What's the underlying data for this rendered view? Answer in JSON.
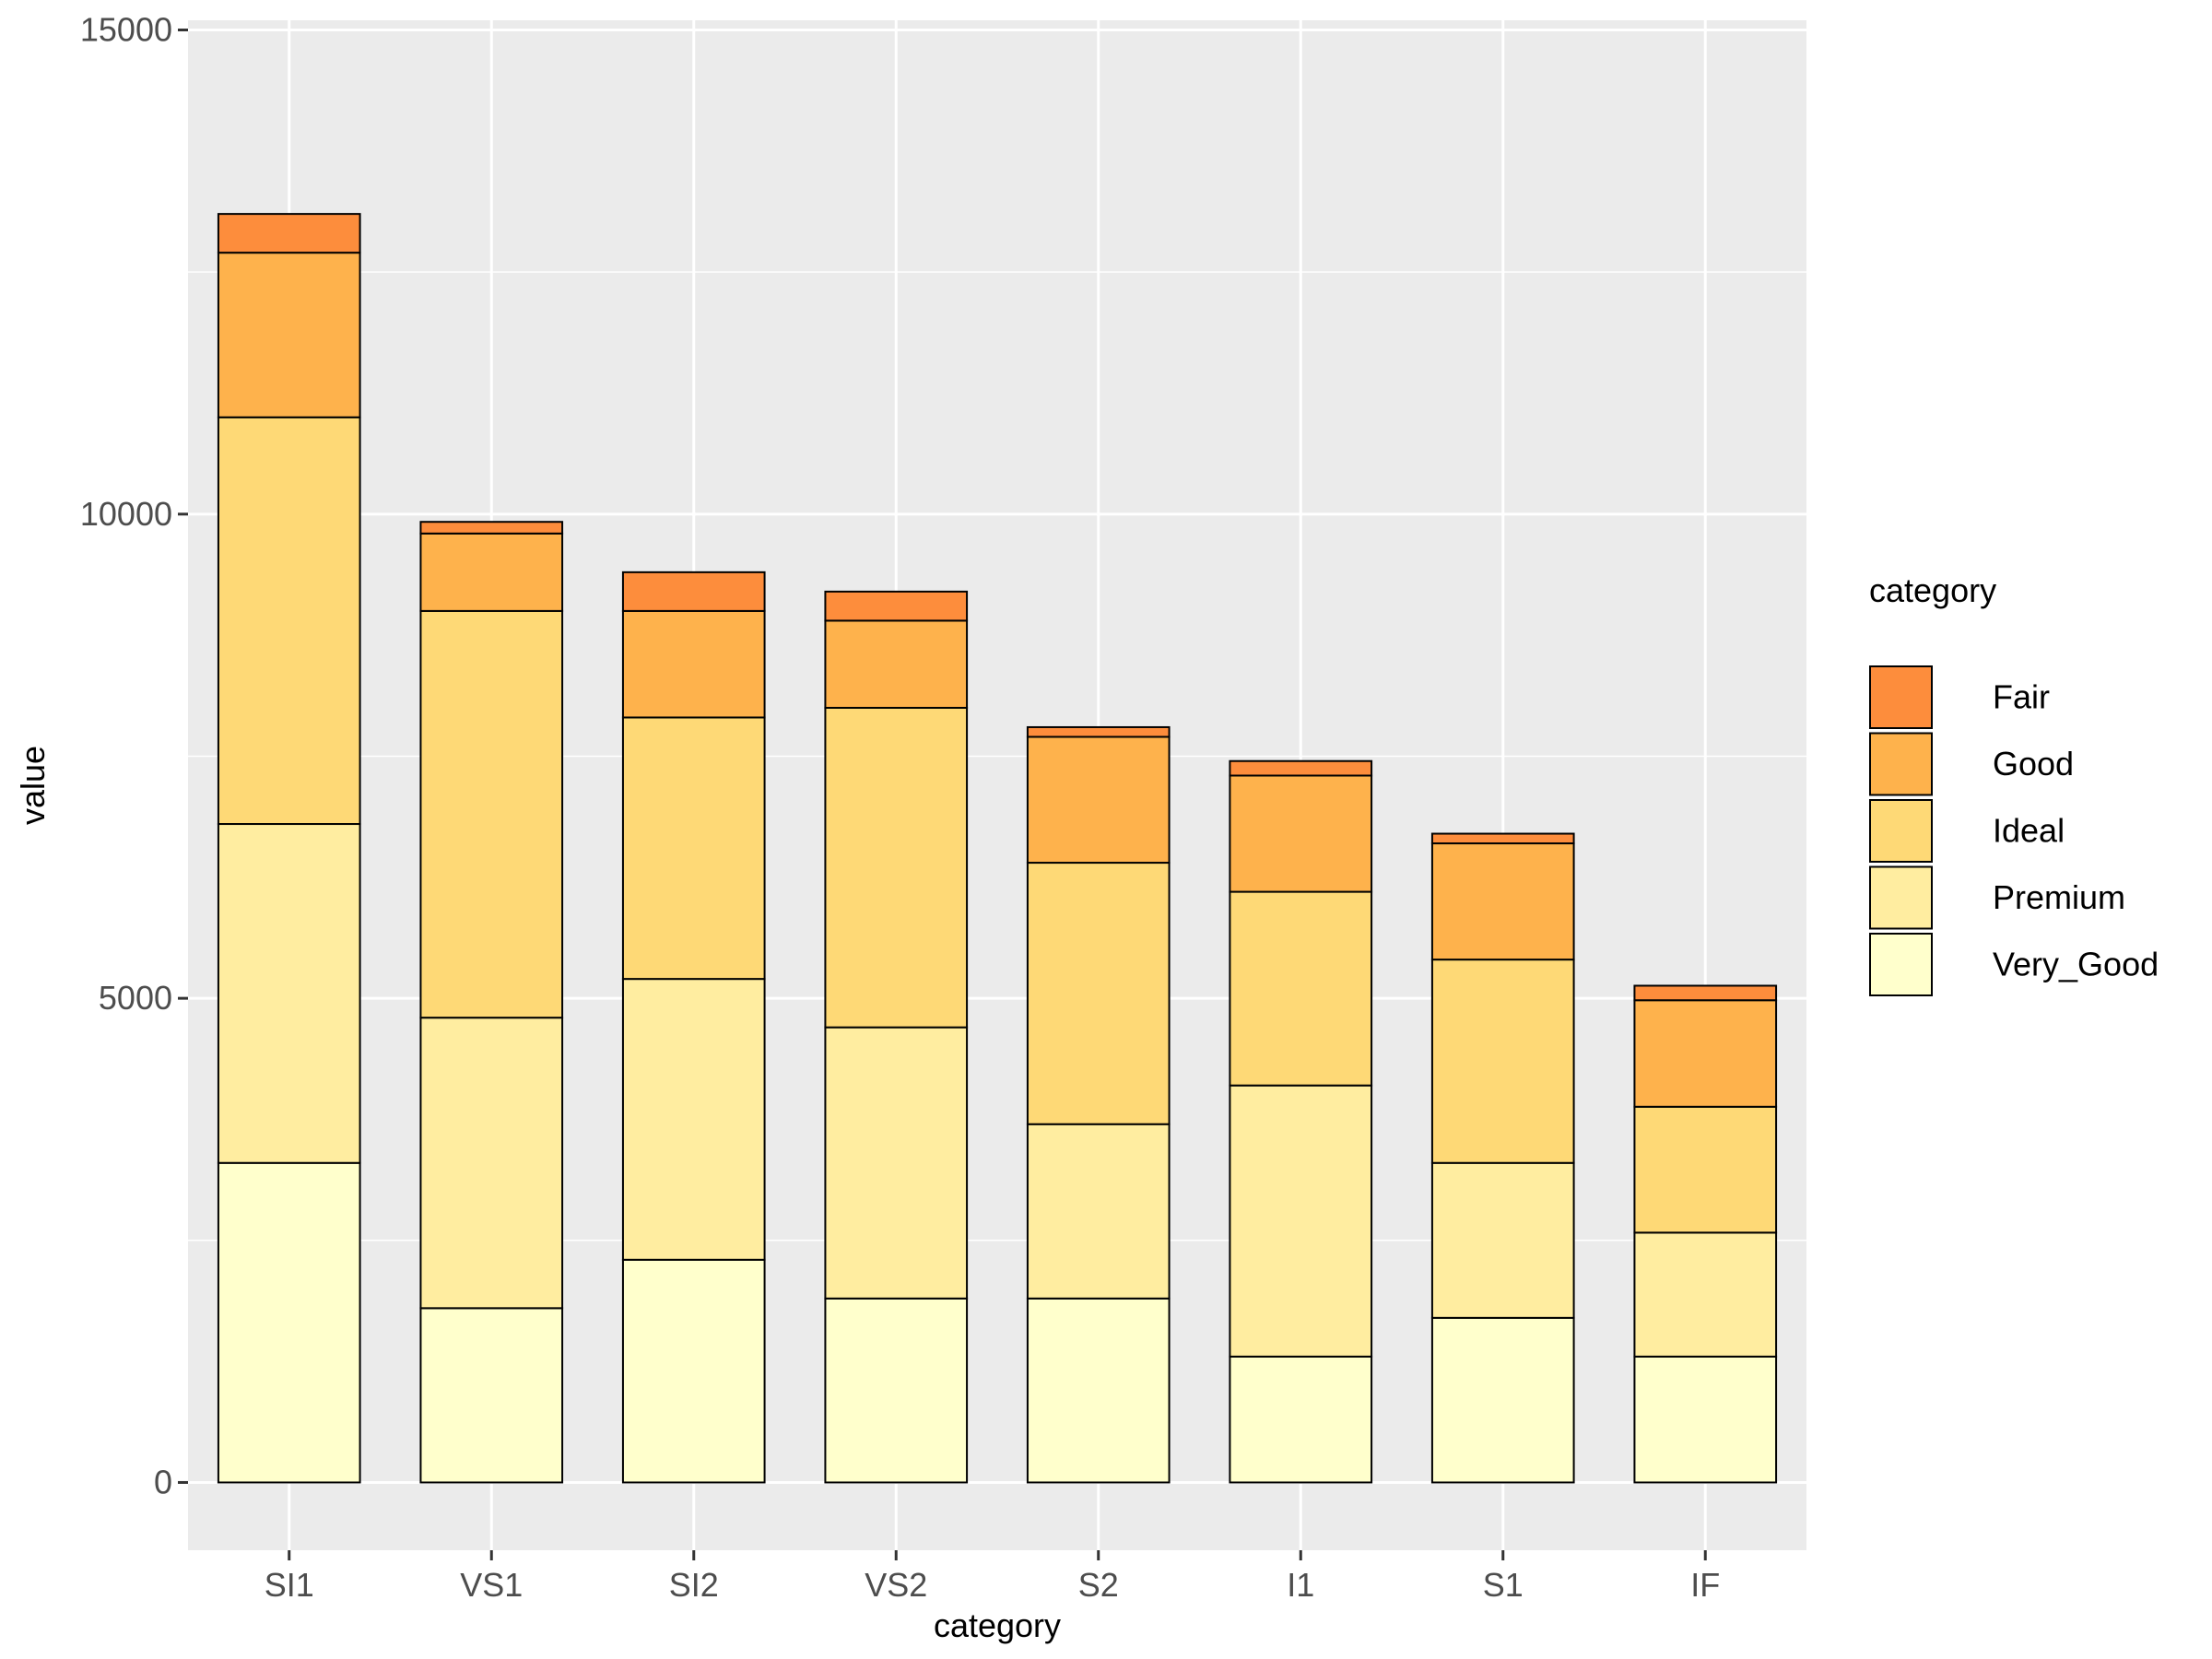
{
  "chart_data": {
    "type": "bar",
    "stacked": true,
    "categories": [
      "SI1",
      "VS1",
      "SI2",
      "VS2",
      "S2",
      "I1",
      "S1",
      "IF"
    ],
    "series": [
      {
        "name": "Very_Good",
        "color": "#FFFFCC",
        "values": [
          3300,
          1800,
          2300,
          1900,
          1900,
          1300,
          1700,
          1300
        ]
      },
      {
        "name": "Premium",
        "color": "#FFEDA0",
        "values": [
          3500,
          3000,
          2900,
          2800,
          1800,
          2800,
          1600,
          1280
        ]
      },
      {
        "name": "Ideal",
        "color": "#FED976",
        "values": [
          4200,
          4200,
          2700,
          3300,
          2700,
          2000,
          2100,
          1300
        ]
      },
      {
        "name": "Good",
        "color": "#FEB24C",
        "values": [
          1700,
          800,
          1100,
          900,
          1300,
          1200,
          1200,
          1100
        ]
      },
      {
        "name": "Fair",
        "color": "#FD8D3C",
        "values": [
          400,
          120,
          400,
          300,
          100,
          150,
          100,
          150
        ]
      }
    ],
    "xlabel": "category",
    "ylabel": "value",
    "yticks": [
      0,
      5000,
      10000,
      15000
    ],
    "ylim": [
      -700,
      15100
    ],
    "grid": true,
    "legend": {
      "title": "category",
      "position": "right",
      "order": [
        "Fair",
        "Good",
        "Ideal",
        "Premium",
        "Very_Good"
      ]
    },
    "colors": {
      "panel": "#EBEBEB",
      "grid": "#FFFFFF",
      "bar_stroke": "#000000"
    }
  }
}
